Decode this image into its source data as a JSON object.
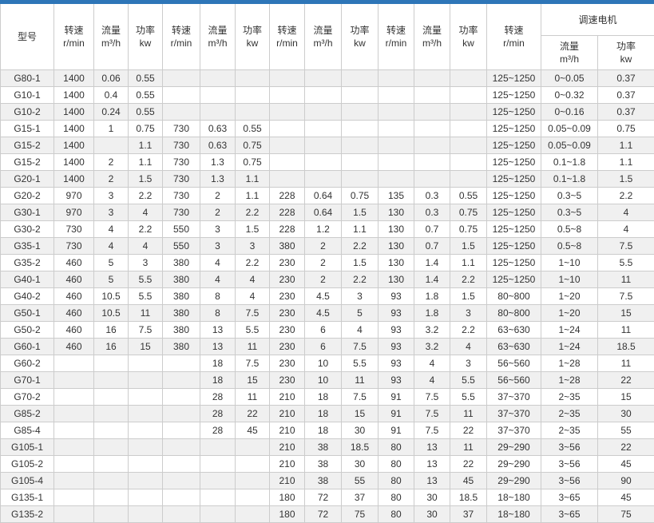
{
  "colors": {
    "top_bar_blue": "#2e76b8",
    "row_stripe": "#f0f0f0",
    "border": "#cccccc",
    "text": "#333333"
  },
  "header": {
    "model": "型号",
    "speed_label": "转速",
    "speed_unit": "r/min",
    "flow_label": "流量",
    "flow_unit": "m³/h",
    "power_label": "功率",
    "power_unit": "kw",
    "vfd_group_label": "调速电机"
  },
  "table": {
    "column_keys": [
      "model",
      "speed1",
      "flow1",
      "power1",
      "speed2",
      "flow2",
      "power2",
      "speed3",
      "flow3",
      "power3",
      "speed4",
      "flow4",
      "power4",
      "vfd-speed",
      "vfd-flow",
      "vfd-power"
    ],
    "rows": [
      [
        "G80-1",
        "1400",
        "0.06",
        "0.55",
        "",
        "",
        "",
        "",
        "",
        "",
        "",
        "",
        "",
        "125~1250",
        "0~0.05",
        "0.37"
      ],
      [
        "G10-1",
        "1400",
        "0.4",
        "0.55",
        "",
        "",
        "",
        "",
        "",
        "",
        "",
        "",
        "",
        "125~1250",
        "0~0.32",
        "0.37"
      ],
      [
        "G10-2",
        "1400",
        "0.24",
        "0.55",
        "",
        "",
        "",
        "",
        "",
        "",
        "",
        "",
        "",
        "125~1250",
        "0~0.16",
        "0.37"
      ],
      [
        "G15-1",
        "1400",
        "1",
        "0.75",
        "730",
        "0.63",
        "0.55",
        "",
        "",
        "",
        "",
        "",
        "",
        "125~1250",
        "0.05~0.09",
        "0.75"
      ],
      [
        "G15-2",
        "1400",
        "",
        "1.1",
        "730",
        "0.63",
        "0.75",
        "",
        "",
        "",
        "",
        "",
        "",
        "125~1250",
        "0.05~0.09",
        "1.1"
      ],
      [
        "G15-2",
        "1400",
        "2",
        "1.1",
        "730",
        "1.3",
        "0.75",
        "",
        "",
        "",
        "",
        "",
        "",
        "125~1250",
        "0.1~1.8",
        "1.1"
      ],
      [
        "G20-1",
        "1400",
        "2",
        "1.5",
        "730",
        "1.3",
        "1.1",
        "",
        "",
        "",
        "",
        "",
        "",
        "125~1250",
        "0.1~1.8",
        "1.5"
      ],
      [
        "G20-2",
        "970",
        "3",
        "2.2",
        "730",
        "2",
        "1.1",
        "228",
        "0.64",
        "0.75",
        "135",
        "0.3",
        "0.55",
        "125~1250",
        "0.3~5",
        "2.2"
      ],
      [
        "G30-1",
        "970",
        "3",
        "4",
        "730",
        "2",
        "2.2",
        "228",
        "0.64",
        "1.5",
        "130",
        "0.3",
        "0.75",
        "125~1250",
        "0.3~5",
        "4"
      ],
      [
        "G30-2",
        "730",
        "4",
        "2.2",
        "550",
        "3",
        "1.5",
        "228",
        "1.2",
        "1.1",
        "130",
        "0.7",
        "0.75",
        "125~1250",
        "0.5~8",
        "4"
      ],
      [
        "G35-1",
        "730",
        "4",
        "4",
        "550",
        "3",
        "3",
        "380",
        "2",
        "2.2",
        "130",
        "0.7",
        "1.5",
        "125~1250",
        "0.5~8",
        "7.5"
      ],
      [
        "G35-2",
        "460",
        "5",
        "3",
        "380",
        "4",
        "2.2",
        "230",
        "2",
        "1.5",
        "130",
        "1.4",
        "1.1",
        "125~1250",
        "1~10",
        "5.5"
      ],
      [
        "G40-1",
        "460",
        "5",
        "5.5",
        "380",
        "4",
        "4",
        "230",
        "2",
        "2.2",
        "130",
        "1.4",
        "2.2",
        "125~1250",
        "1~10",
        "11"
      ],
      [
        "G40-2",
        "460",
        "10.5",
        "5.5",
        "380",
        "8",
        "4",
        "230",
        "4.5",
        "3",
        "93",
        "1.8",
        "1.5",
        "80~800",
        "1~20",
        "7.5"
      ],
      [
        "G50-1",
        "460",
        "10.5",
        "11",
        "380",
        "8",
        "7.5",
        "230",
        "4.5",
        "5",
        "93",
        "1.8",
        "3",
        "80~800",
        "1~20",
        "15"
      ],
      [
        "G50-2",
        "460",
        "16",
        "7.5",
        "380",
        "13",
        "5.5",
        "230",
        "6",
        "4",
        "93",
        "3.2",
        "2.2",
        "63~630",
        "1~24",
        "11"
      ],
      [
        "G60-1",
        "460",
        "16",
        "15",
        "380",
        "13",
        "11",
        "230",
        "6",
        "7.5",
        "93",
        "3.2",
        "4",
        "63~630",
        "1~24",
        "18.5"
      ],
      [
        "G60-2",
        "",
        "",
        "",
        "",
        "18",
        "7.5",
        "230",
        "10",
        "5.5",
        "93",
        "4",
        "3",
        "56~560",
        "1~28",
        "11"
      ],
      [
        "G70-1",
        "",
        "",
        "",
        "",
        "18",
        "15",
        "230",
        "10",
        "11",
        "93",
        "4",
        "5.5",
        "56~560",
        "1~28",
        "22"
      ],
      [
        "G70-2",
        "",
        "",
        "",
        "",
        "28",
        "11",
        "210",
        "18",
        "7.5",
        "91",
        "7.5",
        "5.5",
        "37~370",
        "2~35",
        "15"
      ],
      [
        "G85-2",
        "",
        "",
        "",
        "",
        "28",
        "22",
        "210",
        "18",
        "15",
        "91",
        "7.5",
        "11",
        "37~370",
        "2~35",
        "30"
      ],
      [
        "G85-4",
        "",
        "",
        "",
        "",
        "28",
        "45",
        "210",
        "18",
        "30",
        "91",
        "7.5",
        "22",
        "37~370",
        "2~35",
        "55"
      ],
      [
        "G105-1",
        "",
        "",
        "",
        "",
        "",
        "",
        "210",
        "38",
        "18.5",
        "80",
        "13",
        "11",
        "29~290",
        "3~56",
        "22"
      ],
      [
        "G105-2",
        "",
        "",
        "",
        "",
        "",
        "",
        "210",
        "38",
        "30",
        "80",
        "13",
        "22",
        "29~290",
        "3~56",
        "45"
      ],
      [
        "G105-4",
        "",
        "",
        "",
        "",
        "",
        "",
        "210",
        "38",
        "55",
        "80",
        "13",
        "45",
        "29~290",
        "3~56",
        "90"
      ],
      [
        "G135-1",
        "",
        "",
        "",
        "",
        "",
        "",
        "180",
        "72",
        "37",
        "80",
        "30",
        "18.5",
        "18~180",
        "3~65",
        "45"
      ],
      [
        "G135-2",
        "",
        "",
        "",
        "",
        "",
        "",
        "180",
        "72",
        "75",
        "80",
        "30",
        "37",
        "18~180",
        "3~65",
        "75"
      ]
    ]
  }
}
